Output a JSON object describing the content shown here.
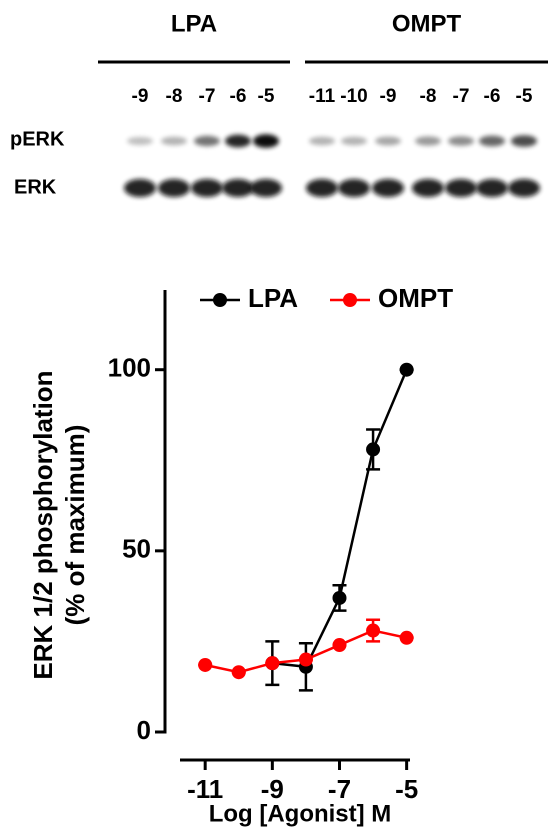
{
  "blot": {
    "groups": [
      {
        "label": "LPA",
        "lanes": [
          "-9",
          "-8",
          "-7",
          "-6",
          "-5"
        ]
      },
      {
        "label": "OMPT",
        "lanes": [
          "-11",
          "-10",
          "-9",
          "-8",
          "-7",
          "-6",
          "-5"
        ]
      }
    ],
    "rows": [
      "pERK",
      "ERK"
    ]
  },
  "chart_data": {
    "type": "line",
    "ylabel": [
      "ERK 1/2 phosphorylation",
      "(% of maximum)"
    ],
    "xlabel": "Log [Agonist] M",
    "series": [
      {
        "name": "LPA",
        "color": "#000000",
        "x": [
          -9,
          -8,
          -7,
          -6,
          -5
        ],
        "values": [
          19,
          18,
          37,
          78,
          100
        ],
        "errors": [
          6,
          6.5,
          3.5,
          5.5,
          0
        ]
      },
      {
        "name": "OMPT",
        "color": "#ff0000",
        "x": [
          -11,
          -10,
          -9,
          -8,
          -7,
          -6,
          -5
        ],
        "values": [
          18.5,
          16.5,
          19,
          20,
          24,
          28,
          26
        ],
        "errors": [
          0,
          0,
          0,
          0,
          0,
          3,
          0
        ]
      }
    ],
    "xlim": [
      -11.75,
      -4.9
    ],
    "xticks": [
      -11,
      -9,
      -7,
      -5
    ],
    "ylim": [
      0,
      122
    ],
    "yticks": [
      0,
      50,
      100
    ],
    "legend": "top"
  }
}
